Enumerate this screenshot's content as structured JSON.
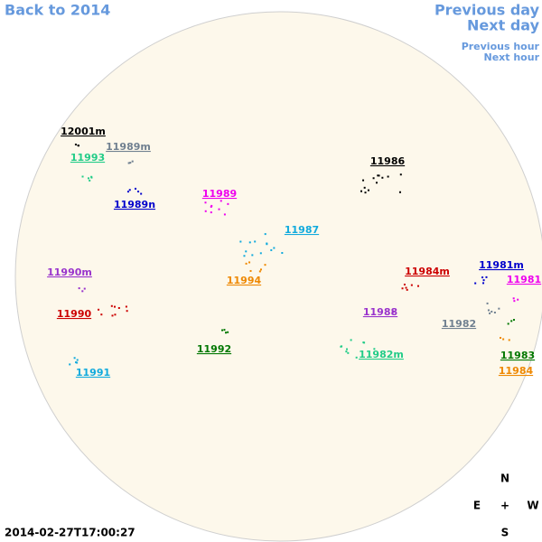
{
  "nav": {
    "back": "Back to 2014",
    "previous_day": "Previous day",
    "next_day": "Next day",
    "previous_hour": "Previous hour",
    "next_hour": "Next hour"
  },
  "regions": [
    {
      "label": "12001m",
      "color": "#000000"
    },
    {
      "label": "11989m",
      "color": "#708090"
    },
    {
      "label": "11993",
      "color": "#22cc88"
    },
    {
      "label": "11986",
      "color": "#000000"
    },
    {
      "label": "11989n",
      "color": "#0000cc"
    },
    {
      "label": "11989",
      "color": "#ee00ee"
    },
    {
      "label": "11987",
      "color": "#11aadd"
    },
    {
      "label": "11994",
      "color": "#ee8800"
    },
    {
      "label": "11990m",
      "color": "#9933cc"
    },
    {
      "label": "11984m",
      "color": "#cc0000"
    },
    {
      "label": "11981m",
      "color": "#0000cc"
    },
    {
      "label": "11981",
      "color": "#ee00ee"
    },
    {
      "label": "11988",
      "color": "#9933cc"
    },
    {
      "label": "11990",
      "color": "#cc0000"
    },
    {
      "label": "11982",
      "color": "#708090"
    },
    {
      "label": "11992",
      "color": "#007700"
    },
    {
      "label": "11982m",
      "color": "#22cc88"
    },
    {
      "label": "11983",
      "color": "#007700"
    },
    {
      "label": "11984",
      "color": "#ee8800"
    },
    {
      "label": "11991",
      "color": "#11aadd"
    }
  ],
  "timestamp": "2014-02-27T17:00:27",
  "compass": {
    "north": "N",
    "east": "E",
    "center": "+",
    "west": "W",
    "south": "S"
  }
}
